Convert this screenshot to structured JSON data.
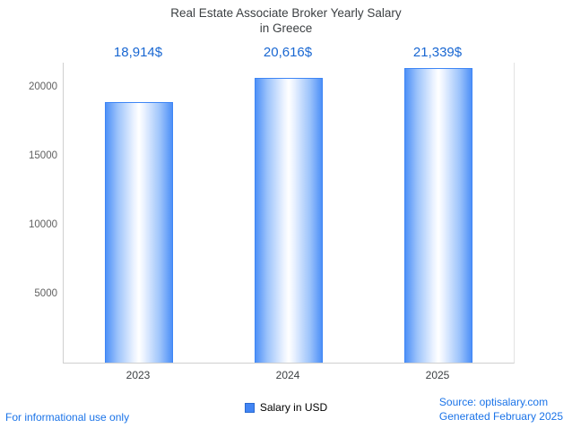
{
  "title": {
    "line1": "Real Estate Associate Broker Yearly Salary",
    "line2": "in Greece"
  },
  "chart_data": {
    "type": "bar",
    "title": "Real Estate Associate Broker Yearly Salary in Greece",
    "categories": [
      "2023",
      "2024",
      "2025"
    ],
    "values": [
      18914,
      20616,
      21339
    ],
    "value_labels": [
      "18,914$",
      "20,616$",
      "21,339$"
    ],
    "xlabel": "",
    "ylabel": "",
    "ylim": [
      0,
      21750
    ],
    "yticks": [
      5000,
      10000,
      15000,
      20000
    ],
    "grid": false,
    "legend": {
      "label": "Salary in USD",
      "position": "bottom"
    },
    "bar_border_color": "#3d85f5",
    "bar_gradient_edge": "#4e90f7",
    "bar_gradient_center": "#ffffff",
    "value_label_color": "#1967d2"
  },
  "legend": {
    "label": "Salary in USD"
  },
  "footer": {
    "left": "For informational use only",
    "source": "Source: optisalary.com",
    "generated": "Generated February 2025"
  },
  "colors": {
    "accent_blue": "#1a73e8",
    "title_gray": "#3c4043",
    "tick_gray": "#616161",
    "axis_gray": "#cfcfcf"
  }
}
